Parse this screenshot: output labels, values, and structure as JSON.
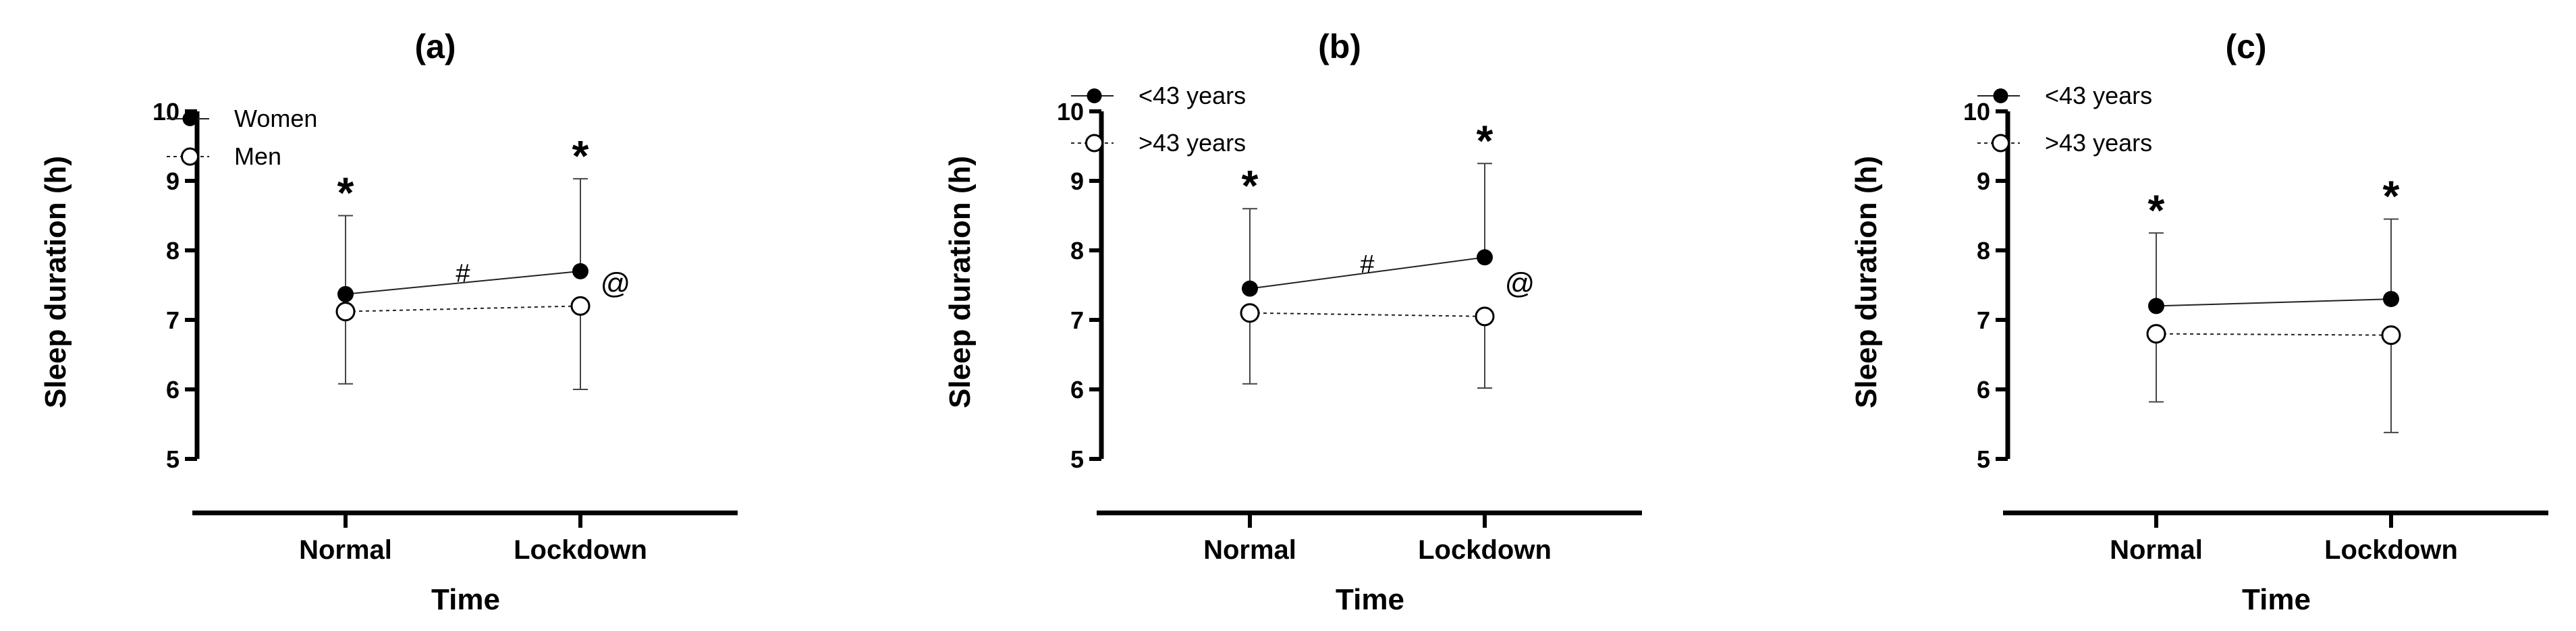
{
  "chart_data": [
    {
      "type": "line",
      "title": "(a)",
      "xlabel": "Time",
      "ylabel": "Sleep duration (h)",
      "categories": [
        "Normal",
        "Lockdown"
      ],
      "yticks": [
        "5",
        "6",
        "7",
        "8",
        "9",
        "10"
      ],
      "ylim": [
        5,
        10
      ],
      "legend_position": "top-left",
      "series": [
        {
          "name": "Women",
          "marker": "filled",
          "line": "solid",
          "values": [
            7.37,
            7.7
          ],
          "error_upper": [
            8.5,
            9.03
          ]
        },
        {
          "name": "Men",
          "marker": "open",
          "line": "dotted",
          "values": [
            7.12,
            7.2
          ],
          "error_lower": [
            6.08,
            6.0
          ]
        }
      ],
      "annotations": [
        {
          "text": "*",
          "category": "Normal",
          "y": 8.5
        },
        {
          "text": "*",
          "category": "Lockdown",
          "y": 9.03
        },
        {
          "text": "#",
          "category": "between",
          "y": 7.55
        },
        {
          "text": "@",
          "category": "Lockdown",
          "y": 7.5
        }
      ]
    },
    {
      "type": "line",
      "title": "(b)",
      "xlabel": "Time",
      "ylabel": "Sleep duration (h)",
      "categories": [
        "Normal",
        "Lockdown"
      ],
      "yticks": [
        "5",
        "6",
        "7",
        "8",
        "9",
        "10"
      ],
      "ylim": [
        5,
        10
      ],
      "legend_position": "top-left",
      "series": [
        {
          "name": "<43 years",
          "marker": "filled",
          "line": "solid",
          "values": [
            7.45,
            7.9
          ],
          "error_upper": [
            8.6,
            9.25
          ]
        },
        {
          "name": ">43 years",
          "marker": "open",
          "line": "dotted",
          "values": [
            7.1,
            7.05
          ],
          "error_lower": [
            6.08,
            6.02
          ]
        }
      ],
      "annotations": [
        {
          "text": "*",
          "category": "Normal",
          "y": 8.6
        },
        {
          "text": "*",
          "category": "Lockdown",
          "y": 9.25
        },
        {
          "text": "#",
          "category": "between",
          "y": 7.68
        },
        {
          "text": "@",
          "category": "Lockdown",
          "y": 7.5
        }
      ]
    },
    {
      "type": "line",
      "title": "(c)",
      "xlabel": "Time",
      "ylabel": "Sleep duration (h)",
      "categories": [
        "Normal",
        "Lockdown"
      ],
      "yticks": [
        "5",
        "6",
        "7",
        "8",
        "9",
        "10"
      ],
      "ylim": [
        5,
        10
      ],
      "legend_position": "top-left",
      "series": [
        {
          "name": "<43 years",
          "marker": "filled",
          "line": "solid",
          "values": [
            7.2,
            7.3
          ],
          "error_upper": [
            8.25,
            8.45
          ]
        },
        {
          "name": ">43 years",
          "marker": "open",
          "line": "dotted",
          "values": [
            6.8,
            6.78
          ],
          "error_lower": [
            5.82,
            5.38
          ]
        }
      ],
      "annotations": [
        {
          "text": "*",
          "category": "Normal",
          "y": 8.25
        },
        {
          "text": "*",
          "category": "Lockdown",
          "y": 8.45
        }
      ]
    }
  ]
}
